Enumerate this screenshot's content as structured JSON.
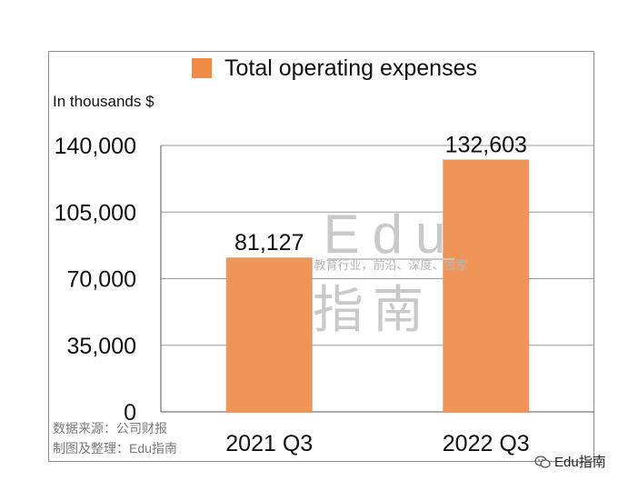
{
  "chart_data": {
    "type": "bar",
    "categories": [
      "2021 Q3",
      "2022 Q3"
    ],
    "series": [
      {
        "name": "Total operating expenses",
        "values": [
          81127,
          132603
        ]
      }
    ],
    "data_labels": [
      "81,127",
      "132,603"
    ],
    "ylabel": "In thousands $",
    "ylim": [
      0,
      140000
    ],
    "yticks": [
      0,
      35000,
      70000,
      105000,
      140000
    ],
    "ytick_labels": [
      "0",
      "35,000",
      "70,000",
      "105,000",
      "140,000"
    ],
    "grid": true,
    "legend": "top",
    "colors": {
      "bar": "#f0955a",
      "legend_swatch": "#f08a45",
      "grid": "#9a9a9a"
    }
  },
  "footnotes": {
    "source": "数据来源：公司财报",
    "editor": "制图及整理：Edu指南"
  },
  "watermark": {
    "title": "Edu",
    "tagline": "教育行业，前沿、深度、独家",
    "name": "指南"
  },
  "brand": {
    "label": "Edu指南",
    "icon": "wechat-icon"
  }
}
